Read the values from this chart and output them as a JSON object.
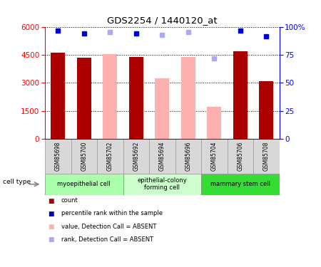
{
  "title": "GDS2254 / 1440120_at",
  "samples": [
    "GSM85698",
    "GSM85700",
    "GSM85702",
    "GSM85692",
    "GSM85694",
    "GSM85696",
    "GSM85704",
    "GSM85706",
    "GSM85708"
  ],
  "bar_values": [
    4600,
    4350,
    null,
    4380,
    null,
    null,
    null,
    4680,
    3080
  ],
  "absent_bar_values": [
    null,
    null,
    4550,
    null,
    3250,
    4400,
    1700,
    null,
    null
  ],
  "rank_present": [
    5800,
    5650,
    null,
    5650,
    null,
    null,
    null,
    5800,
    5500
  ],
  "rank_absent": [
    null,
    null,
    5700,
    null,
    5550,
    5700,
    4300,
    null,
    null
  ],
  "dark_red": "#aa0000",
  "pink": "#ffb0b0",
  "dark_blue": "#0000cc",
  "light_blue": "#aaaaee",
  "ylim_left": [
    0,
    6000
  ],
  "ylim_right": [
    0,
    100
  ],
  "yticks_left": [
    0,
    1500,
    3000,
    4500,
    6000
  ],
  "yticks_right": [
    0,
    25,
    50,
    75,
    100
  ],
  "cell_groups": [
    {
      "label": "myoepithelial cell",
      "indices": [
        0,
        1,
        2
      ],
      "color": "#aaffaa"
    },
    {
      "label": "epithelial-colony\nforming cell",
      "indices": [
        3,
        4,
        5
      ],
      "color": "#ccffcc"
    },
    {
      "label": "mammary stem cell",
      "indices": [
        6,
        7,
        8
      ],
      "color": "#33dd33"
    }
  ],
  "legend_labels": [
    "count",
    "percentile rank within the sample",
    "value, Detection Call = ABSENT",
    "rank, Detection Call = ABSENT"
  ],
  "legend_colors": [
    "#aa0000",
    "#0000cc",
    "#ffb0b0",
    "#aaaaee"
  ],
  "cell_type_label": "cell type"
}
